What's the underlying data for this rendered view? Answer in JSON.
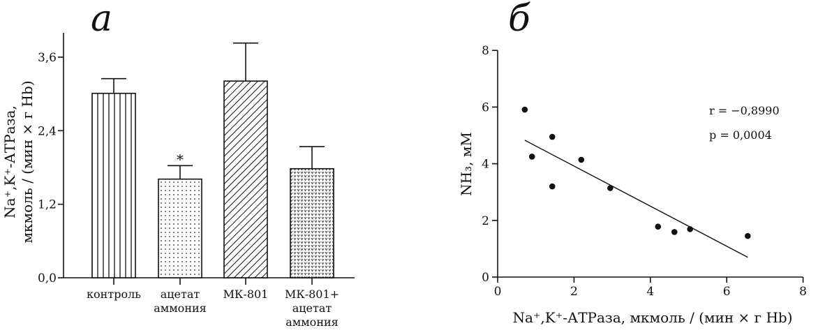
{
  "chart_data": [
    {
      "type": "bar",
      "panel_label": "а",
      "categories": [
        [
          "контроль"
        ],
        [
          "ацетат",
          "аммония"
        ],
        [
          "МК-801"
        ],
        [
          "МК-801+",
          "ацетат",
          "аммония"
        ]
      ],
      "values": [
        3.01,
        1.61,
        3.21,
        1.78
      ],
      "error_upper": [
        3.25,
        1.83,
        3.83,
        2.14
      ],
      "patterns": [
        "vertical-lines",
        "dots",
        "diagonal-lines",
        "dense-dots"
      ],
      "significance": [
        "",
        "*",
        "",
        ""
      ],
      "ylabel": [
        "Na⁺,K⁺-АТРаза,",
        "мкмоль / (мин × г Hb)"
      ],
      "yticks": [
        0.0,
        1.2,
        2.4,
        3.6
      ],
      "ytick_labels": [
        "0,0",
        "1,2",
        "2,4",
        "3,6"
      ],
      "ylim": [
        0,
        4.0
      ]
    },
    {
      "type": "scatter",
      "panel_label": "б",
      "points": [
        {
          "x": 0.71,
          "y": 5.91
        },
        {
          "x": 0.9,
          "y": 4.25
        },
        {
          "x": 1.43,
          "y": 4.95
        },
        {
          "x": 1.43,
          "y": 3.2
        },
        {
          "x": 2.19,
          "y": 4.14
        },
        {
          "x": 2.95,
          "y": 3.14
        },
        {
          "x": 4.2,
          "y": 1.78
        },
        {
          "x": 4.63,
          "y": 1.59
        },
        {
          "x": 5.04,
          "y": 1.69
        },
        {
          "x": 6.55,
          "y": 1.45
        }
      ],
      "fit_line": [
        {
          "x": 0.71,
          "y": 4.83
        },
        {
          "x": 6.55,
          "y": 0.7
        }
      ],
      "xlabel": "Na⁺,K⁺-АТРаза, мкмоль / (мин × г Hb)",
      "ylabel": "NH₃, мМ",
      "xticks": [
        0,
        2,
        4,
        6,
        8
      ],
      "yticks": [
        0,
        2,
        4,
        6,
        8
      ],
      "xlim": [
        0,
        8
      ],
      "ylim": [
        0,
        8
      ],
      "annotations": [
        "r = −0,8990",
        "p = 0,0004"
      ]
    }
  ]
}
